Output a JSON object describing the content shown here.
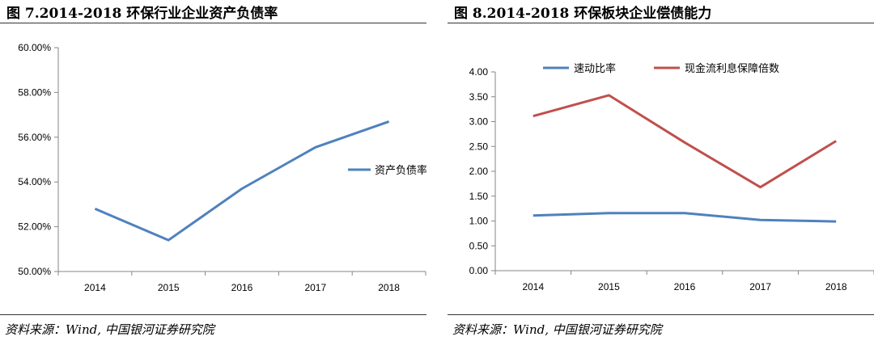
{
  "panels": [
    {
      "title": "图 7.2014-2018 环保行业企业资产负债率",
      "source": "资料来源：Wind, 中国银河证券研究院",
      "chart_data": {
        "type": "line",
        "title": "",
        "xlabel": "",
        "ylabel": "",
        "categories": [
          "2014",
          "2015",
          "2016",
          "2017",
          "2018"
        ],
        "ylim": [
          0.5,
          0.6
        ],
        "yticks": [
          0.5,
          0.52,
          0.54,
          0.56,
          0.58,
          0.6
        ],
        "ytick_labels": [
          "50.00%",
          "52.00%",
          "54.00%",
          "56.00%",
          "58.00%",
          "60.00%"
        ],
        "grid": false,
        "legend": "right",
        "series": [
          {
            "name": "资产负债率",
            "color": "#4f81bd",
            "values": [
              0.528,
              0.514,
              0.537,
              0.5555,
              0.567
            ]
          }
        ]
      }
    },
    {
      "title": "图 8.2014-2018 环保板块企业偿债能力",
      "source": "资料来源：Wind, 中国银河证券研究院",
      "chart_data": {
        "type": "line",
        "title": "",
        "xlabel": "",
        "ylabel": "",
        "categories": [
          "2014",
          "2015",
          "2016",
          "2017",
          "2018"
        ],
        "ylim": [
          0,
          4
        ],
        "yticks": [
          0,
          0.5,
          1,
          1.5,
          2,
          2.5,
          3,
          3.5,
          4
        ],
        "ytick_labels": [
          "0.00",
          "0.50",
          "1.00",
          "1.50",
          "2.00",
          "2.50",
          "3.00",
          "3.50",
          "4.00"
        ],
        "grid": false,
        "legend": "top",
        "series": [
          {
            "name": "速动比率",
            "color": "#4f81bd",
            "values": [
              1.11,
              1.16,
              1.16,
              1.02,
              0.99
            ]
          },
          {
            "name": "现金流利息保障倍数",
            "color": "#c0504d",
            "values": [
              3.11,
              3.53,
              2.58,
              1.68,
              2.61
            ]
          }
        ]
      }
    }
  ]
}
